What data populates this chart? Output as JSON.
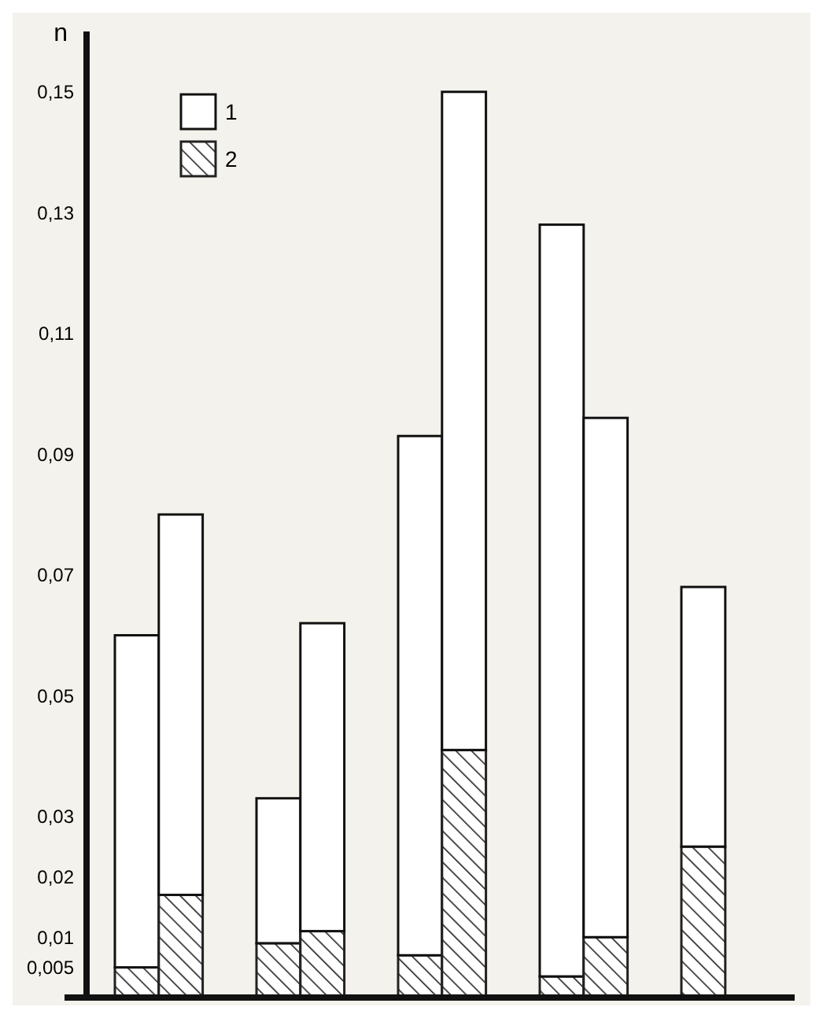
{
  "chart_data": {
    "type": "bar",
    "ylabel": "n",
    "stacked": true,
    "legend": "top left",
    "categories": [
      null,
      null,
      null,
      null,
      null,
      null,
      null,
      null,
      null,
      null
    ],
    "series": [
      {
        "name": "2",
        "color": "#222222",
        "values": [
          0.005,
          0.017,
          0.009,
          0.011,
          0.007,
          0.041,
          0.0035,
          0.01,
          0.025,
          null
        ]
      },
      {
        "name": "1",
        "color": "#ffffff",
        "values": [
          0.055,
          0.063,
          0.024,
          0.051,
          0.086,
          0.109,
          0.1245,
          0.086,
          0.043,
          null
        ]
      }
    ],
    "ylim": [
      0,
      0.16
    ],
    "yticks": [
      {
        "value": 0.005,
        "label": "0,005"
      },
      {
        "value": 0.01,
        "label": "0,01"
      },
      {
        "value": 0.02,
        "label": "0,02"
      },
      {
        "value": 0.03,
        "label": "0,03"
      },
      {
        "value": 0.05,
        "label": "0,05"
      },
      {
        "value": 0.07,
        "label": "0,07"
      },
      {
        "value": 0.09,
        "label": "0,09"
      },
      {
        "value": 0.11,
        "label": "0,11"
      },
      {
        "value": 0.13,
        "label": "0,13"
      },
      {
        "value": 0.15,
        "label": "0,15"
      }
    ],
    "grid": false
  }
}
